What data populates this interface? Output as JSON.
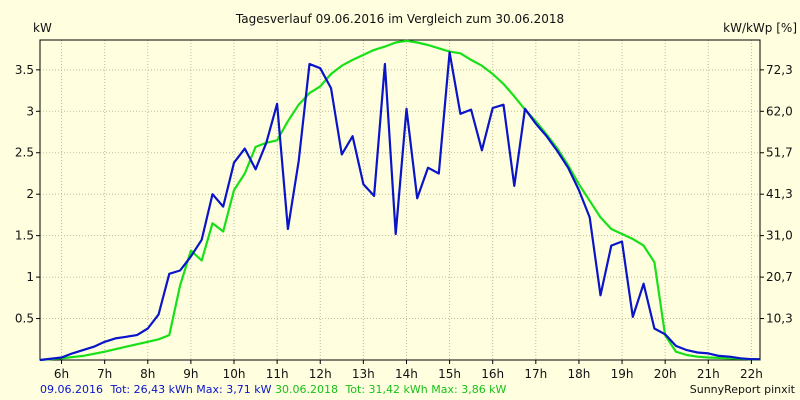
{
  "chart_data": {
    "type": "line",
    "title": "Tagesverlauf 09.06.2016 im Vergleich zum 30.06.2018",
    "ylabel_left": "kW",
    "ylabel_right": "kW/kWp [%]",
    "ylim": [
      0,
      3.86
    ],
    "xlim": [
      5.5,
      22.2
    ],
    "grid": true,
    "x_ticks": [
      {
        "x": 6,
        "label": "6h"
      },
      {
        "x": 7,
        "label": "7h"
      },
      {
        "x": 8,
        "label": "8h"
      },
      {
        "x": 9,
        "label": "9h"
      },
      {
        "x": 10,
        "label": "10h"
      },
      {
        "x": 11,
        "label": "11h"
      },
      {
        "x": 12,
        "label": "12h"
      },
      {
        "x": 13,
        "label": "13h"
      },
      {
        "x": 14,
        "label": "14h"
      },
      {
        "x": 15,
        "label": "15h"
      },
      {
        "x": 16,
        "label": "16h"
      },
      {
        "x": 17,
        "label": "17h"
      },
      {
        "x": 18,
        "label": "18h"
      },
      {
        "x": 19,
        "label": "19h"
      },
      {
        "x": 20,
        "label": "20h"
      },
      {
        "x": 21,
        "label": "21h"
      },
      {
        "x": 22,
        "label": "22h"
      }
    ],
    "y_ticks_left": [
      {
        "y": 0.5,
        "label": "0.5"
      },
      {
        "y": 1,
        "label": "1"
      },
      {
        "y": 1.5,
        "label": "1.5"
      },
      {
        "y": 2,
        "label": "2"
      },
      {
        "y": 2.5,
        "label": "2.5"
      },
      {
        "y": 3,
        "label": "3"
      },
      {
        "y": 3.5,
        "label": "3.5"
      }
    ],
    "y_ticks_right": [
      {
        "y": 0.5,
        "label": "10,3"
      },
      {
        "y": 1,
        "label": "20,7"
      },
      {
        "y": 1.5,
        "label": "31,0"
      },
      {
        "y": 2,
        "label": "41,3"
      },
      {
        "y": 2.5,
        "label": "51,7"
      },
      {
        "y": 3,
        "label": "62,0"
      },
      {
        "y": 3.5,
        "label": "72,3"
      }
    ],
    "series": [
      {
        "name": "09.06.2016",
        "color": "#0a14c8",
        "x": [
          5.5,
          6.0,
          6.25,
          6.5,
          6.75,
          7.0,
          7.25,
          7.5,
          7.75,
          8.0,
          8.25,
          8.5,
          8.75,
          9.0,
          9.25,
          9.5,
          9.75,
          10.0,
          10.25,
          10.5,
          10.75,
          11.0,
          11.25,
          11.5,
          11.75,
          12.0,
          12.25,
          12.5,
          12.75,
          13.0,
          13.25,
          13.5,
          13.75,
          14.0,
          14.25,
          14.5,
          14.75,
          15.0,
          15.25,
          15.5,
          15.75,
          16.0,
          16.25,
          16.5,
          16.75,
          17.0,
          17.25,
          17.5,
          17.75,
          18.0,
          18.25,
          18.5,
          18.75,
          19.0,
          19.25,
          19.5,
          19.75,
          20.0,
          20.25,
          20.5,
          20.75,
          21.0,
          21.25,
          21.5,
          21.75,
          22.0,
          22.2
        ],
        "y": [
          0,
          0.03,
          0.08,
          0.12,
          0.16,
          0.22,
          0.26,
          0.28,
          0.3,
          0.38,
          0.55,
          1.04,
          1.08,
          1.25,
          1.45,
          2.0,
          1.85,
          2.38,
          2.55,
          2.3,
          2.62,
          3.09,
          1.58,
          2.4,
          3.57,
          3.52,
          3.28,
          2.48,
          2.7,
          2.12,
          1.98,
          3.57,
          1.52,
          3.03,
          1.95,
          2.32,
          2.25,
          3.71,
          2.97,
          3.02,
          2.53,
          3.04,
          3.08,
          2.1,
          3.03,
          2.85,
          2.7,
          2.52,
          2.32,
          2.05,
          1.72,
          0.78,
          1.38,
          1.43,
          0.52,
          0.92,
          0.38,
          0.31,
          0.17,
          0.12,
          0.09,
          0.08,
          0.05,
          0.04,
          0.02,
          0.01,
          0.01
        ]
      },
      {
        "name": "30.06.2018",
        "color": "#18e018",
        "x": [
          5.5,
          6.0,
          6.5,
          7.0,
          7.5,
          8.0,
          8.25,
          8.5,
          8.75,
          9.0,
          9.25,
          9.5,
          9.75,
          10.0,
          10.25,
          10.5,
          10.75,
          11.0,
          11.25,
          11.5,
          11.75,
          12.0,
          12.25,
          12.5,
          12.75,
          13.0,
          13.25,
          13.5,
          13.75,
          14.0,
          14.25,
          14.5,
          14.75,
          15.0,
          15.25,
          15.5,
          15.75,
          16.0,
          16.25,
          16.5,
          16.75,
          17.0,
          17.25,
          17.5,
          17.75,
          18.0,
          18.25,
          18.5,
          18.75,
          19.0,
          19.25,
          19.5,
          19.75,
          20.0,
          20.25,
          20.5,
          20.75,
          21.0,
          21.5,
          22.0,
          22.2
        ],
        "y": [
          0,
          0.02,
          0.05,
          0.1,
          0.16,
          0.22,
          0.25,
          0.3,
          0.9,
          1.32,
          1.2,
          1.65,
          1.55,
          2.05,
          2.25,
          2.57,
          2.62,
          2.65,
          2.88,
          3.08,
          3.22,
          3.3,
          3.45,
          3.55,
          3.62,
          3.68,
          3.74,
          3.78,
          3.83,
          3.85,
          3.83,
          3.8,
          3.76,
          3.72,
          3.7,
          3.62,
          3.55,
          3.45,
          3.33,
          3.18,
          3.02,
          2.88,
          2.72,
          2.55,
          2.35,
          2.12,
          1.92,
          1.72,
          1.58,
          1.52,
          1.46,
          1.38,
          1.18,
          0.3,
          0.1,
          0.06,
          0.04,
          0.03,
          0.02,
          0.01,
          0.01
        ]
      }
    ]
  },
  "footer": {
    "series1_date": "09.06.2016",
    "series1_stats": "Tot: 26,43 kWh Max: 3,71 kW",
    "series2_date": "30.06.2018",
    "series2_stats": "Tot: 31,42 kWh Max: 3,86 kW",
    "credit": "SunnyReport pinxit"
  }
}
